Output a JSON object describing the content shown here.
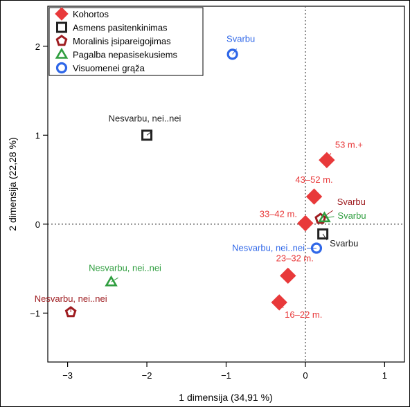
{
  "chart_data": {
    "type": "scatter",
    "xlabel": "1 dimensija (34,91 %)",
    "ylabel": "2 dimensija (22,28 %)",
    "xlim": [
      -3.25,
      1.25
    ],
    "ylim": [
      -1.55,
      2.45
    ],
    "xticks": [
      -3,
      -2,
      -1,
      0,
      1
    ],
    "yticks": [
      -1,
      0,
      1,
      2
    ],
    "grid": false,
    "reference_lines": {
      "x": 0,
      "y": 0,
      "style": "dotted"
    },
    "legend_position": "top-left",
    "series": [
      {
        "name": "Kohortos",
        "marker": "diamond-filled",
        "color": "#e8393a",
        "points": [
          {
            "label": "53 m.+",
            "x": 0.27,
            "y": 0.72
          },
          {
            "label": "43–52 m.",
            "x": 0.11,
            "y": 0.31
          },
          {
            "label": "33–42 m.",
            "x": 0.0,
            "y": 0.01
          },
          {
            "label": "23–32 m.",
            "x": -0.22,
            "y": -0.58
          },
          {
            "label": "16–22 m.",
            "x": -0.33,
            "y": -0.88
          }
        ]
      },
      {
        "name": "Asmens pasitenkinimas",
        "marker": "square-open",
        "color": "#222222",
        "points": [
          {
            "label": "Nesvarbu, nei..nei",
            "x": -2.0,
            "y": 1.0
          },
          {
            "label": "Svarbu",
            "x": 0.22,
            "y": -0.11
          }
        ]
      },
      {
        "name": "Moralinis įsipareigojimas",
        "marker": "pentagon-open",
        "color": "#9e1c20",
        "points": [
          {
            "label": "Nesvarbu, nei..nei",
            "x": -2.96,
            "y": -0.99
          },
          {
            "label": "Svarbu",
            "x": 0.19,
            "y": 0.06
          }
        ]
      },
      {
        "name": "Pagalba nepasisekusiems",
        "marker": "triangle-open",
        "color": "#2f9e3f",
        "points": [
          {
            "label": "Nesvarbu, nei..nei",
            "x": -2.45,
            "y": -0.65
          },
          {
            "label": "Svarbu",
            "x": 0.24,
            "y": 0.07
          }
        ]
      },
      {
        "name": "Visuomenei grąža",
        "marker": "circle-open",
        "color": "#2f67e8",
        "points": [
          {
            "label": "Svarbu",
            "x": -0.92,
            "y": 1.91
          },
          {
            "label": "Nesvarbu, nei..nei",
            "x": 0.14,
            "y": -0.27
          }
        ]
      }
    ]
  }
}
